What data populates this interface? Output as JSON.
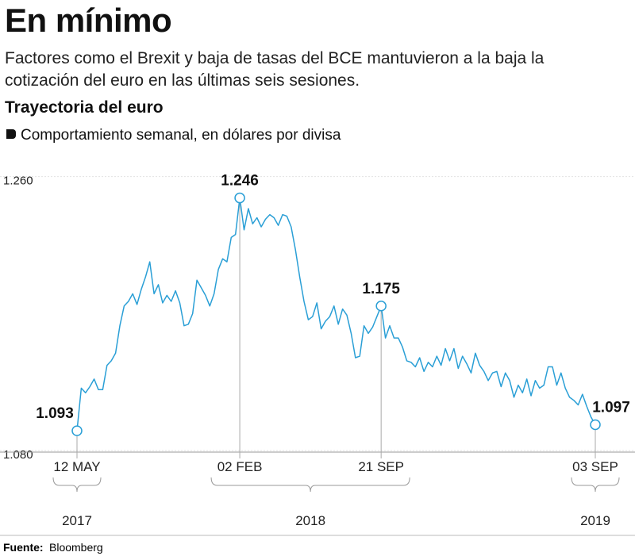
{
  "chart_data": {
    "type": "line",
    "title": "En mínimo",
    "subtitle": "Factores como el Brexit y baja de tasas del BCE mantuvieron a la baja la cotización del euro en las últimas seis sesiones.",
    "chart_title": "Trayectoria del euro",
    "chart_subtitle": "Comportamiento semanal, en dólares por divisa",
    "source_label": "Fuente:",
    "source": "Bloomberg",
    "color": "#2a9fd6",
    "grid": true,
    "ylim": [
      1.079,
      1.264
    ],
    "yticks": [
      {
        "value": 1.26,
        "label": "1.260"
      },
      {
        "value": 1.08,
        "label": "1.080"
      }
    ],
    "years": [
      "2017",
      "2018",
      "2019"
    ],
    "categories": [
      "12 MAY",
      null,
      null,
      null,
      null,
      null,
      null,
      null,
      null,
      null,
      null,
      null,
      null,
      null,
      null,
      null,
      null,
      null,
      null,
      null,
      null,
      null,
      null,
      null,
      null,
      null,
      null,
      null,
      null,
      null,
      null,
      null,
      null,
      null,
      null,
      null,
      null,
      null,
      "02 FEB",
      null,
      null,
      null,
      null,
      null,
      null,
      null,
      null,
      null,
      null,
      null,
      null,
      null,
      null,
      null,
      null,
      null,
      null,
      null,
      null,
      null,
      null,
      null,
      null,
      null,
      null,
      null,
      null,
      null,
      null,
      null,
      null,
      "21 SEP",
      null,
      null,
      null,
      null,
      null,
      null,
      null,
      null,
      null,
      null,
      null,
      null,
      null,
      null,
      null,
      null,
      null,
      null,
      null,
      null,
      null,
      null,
      null,
      null,
      null,
      null,
      null,
      null,
      null,
      null,
      null,
      null,
      null,
      null,
      null,
      null,
      null,
      null,
      null,
      null,
      null,
      null,
      null,
      null,
      null,
      null,
      null,
      null,
      null,
      "03 SEP"
    ],
    "values": [
      1.093,
      1.121,
      1.118,
      1.122,
      1.127,
      1.12,
      1.12,
      1.136,
      1.139,
      1.144,
      1.162,
      1.175,
      1.178,
      1.183,
      1.176,
      1.186,
      1.194,
      1.204,
      1.183,
      1.189,
      1.177,
      1.182,
      1.178,
      1.185,
      1.177,
      1.162,
      1.163,
      1.17,
      1.192,
      1.187,
      1.182,
      1.175,
      1.183,
      1.199,
      1.206,
      1.204,
      1.22,
      1.222,
      1.246,
      1.225,
      1.239,
      1.229,
      1.233,
      1.227,
      1.232,
      1.235,
      1.233,
      1.228,
      1.235,
      1.234,
      1.227,
      1.212,
      1.194,
      1.178,
      1.166,
      1.168,
      1.177,
      1.16,
      1.165,
      1.168,
      1.175,
      1.163,
      1.173,
      1.169,
      1.157,
      1.141,
      1.142,
      1.162,
      1.157,
      1.161,
      1.168,
      1.175,
      1.154,
      1.162,
      1.154,
      1.154,
      1.148,
      1.139,
      1.138,
      1.135,
      1.141,
      1.132,
      1.138,
      1.135,
      1.142,
      1.136,
      1.147,
      1.139,
      1.147,
      1.134,
      1.142,
      1.137,
      1.131,
      1.144,
      1.136,
      1.132,
      1.126,
      1.131,
      1.132,
      1.122,
      1.131,
      1.126,
      1.115,
      1.123,
      1.118,
      1.127,
      1.116,
      1.126,
      1.121,
      1.123,
      1.135,
      1.135,
      1.123,
      1.131,
      1.121,
      1.115,
      1.113,
      1.11,
      1.117,
      1.109,
      1.102,
      1.097
    ]
  }
}
